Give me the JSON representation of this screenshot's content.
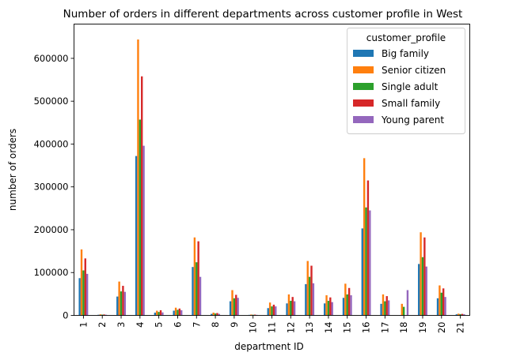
{
  "chart_data": {
    "type": "bar",
    "title": "Number of orders in different departments across customer profile in West",
    "xlabel": "department ID",
    "ylabel": "number of orders",
    "ylim": [
      0,
      680000
    ],
    "yticks": [
      0,
      100000,
      200000,
      300000,
      400000,
      500000,
      600000
    ],
    "grid": false,
    "legend": {
      "title": "customer_profile",
      "placement": "top-right"
    },
    "categories": [
      "1",
      "2",
      "3",
      "4",
      "5",
      "6",
      "7",
      "8",
      "9",
      "10",
      "11",
      "12",
      "13",
      "14",
      "15",
      "16",
      "17",
      "18",
      "19",
      "20",
      "21"
    ],
    "series": [
      {
        "name": "Big family",
        "color": "#1f77b4",
        "values": [
          87000,
          1500,
          44000,
          372000,
          6500,
          11000,
          113000,
          3500,
          33000,
          1200,
          17000,
          28000,
          73000,
          28000,
          41000,
          203000,
          27000,
          500,
          120000,
          40000,
          2500
        ]
      },
      {
        "name": "Senior citizen",
        "color": "#ff7f0e",
        "values": [
          154000,
          2500,
          79000,
          644000,
          11000,
          18000,
          182000,
          6500,
          59000,
          2000,
          30000,
          49000,
          127000,
          47000,
          74000,
          367000,
          49000,
          27000,
          194000,
          70000,
          4000
        ]
      },
      {
        "name": "Single adult",
        "color": "#2ca02c",
        "values": [
          105000,
          1800,
          56000,
          457000,
          8000,
          13000,
          124000,
          4500,
          40000,
          1500,
          21000,
          34000,
          90000,
          34000,
          49000,
          252000,
          33000,
          20000,
          136000,
          53000,
          3000
        ]
      },
      {
        "name": "Small family",
        "color": "#d62728",
        "values": [
          133000,
          2200,
          69000,
          558000,
          12000,
          16000,
          173000,
          5500,
          48000,
          1800,
          25000,
          43000,
          116000,
          42000,
          64000,
          315000,
          45000,
          500,
          182000,
          63000,
          3500
        ]
      },
      {
        "name": "Young parent",
        "color": "#9467bd",
        "values": [
          97000,
          1500,
          55000,
          396000,
          7000,
          12000,
          90000,
          3500,
          41000,
          1200,
          21000,
          33000,
          75000,
          31000,
          47000,
          245000,
          35000,
          59000,
          114000,
          43000,
          2800
        ]
      }
    ]
  }
}
